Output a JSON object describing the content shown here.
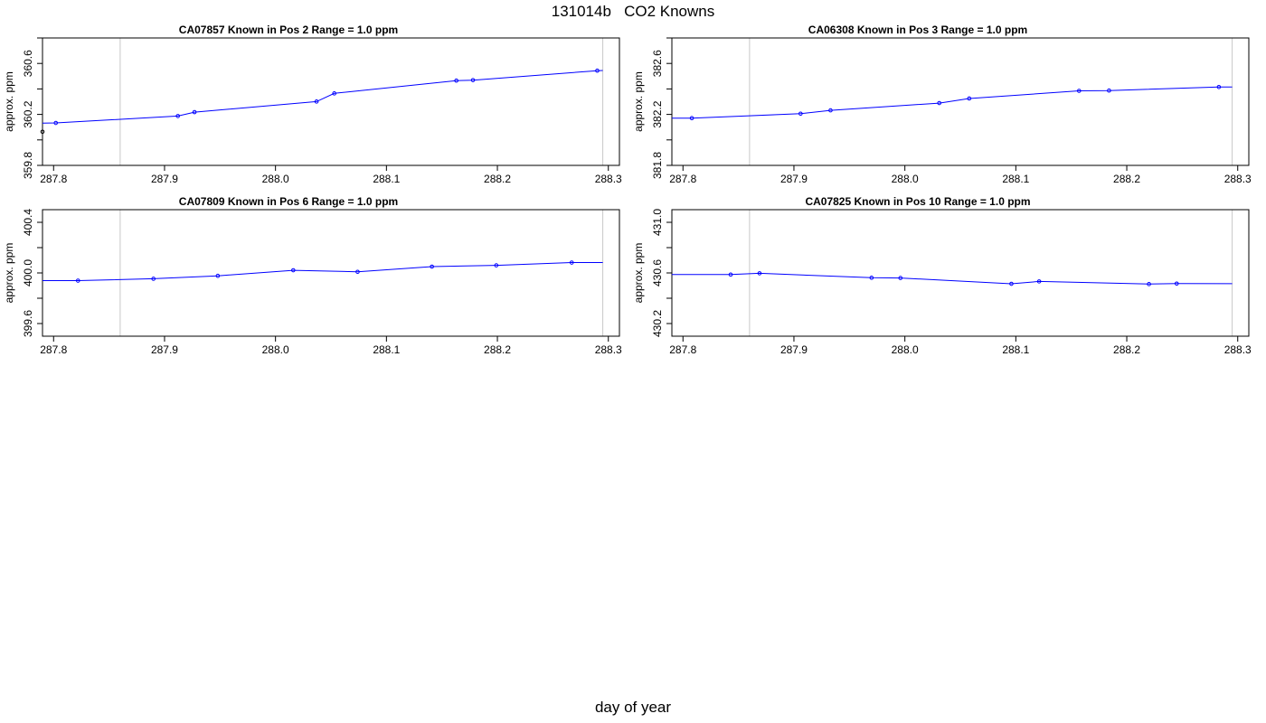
{
  "figure": {
    "title": "131014b   CO2 Knowns",
    "xlabel": "day of year"
  },
  "chart_data": [
    {
      "type": "line",
      "title": "CA07857    Known in Pos 2          Range = 1.0 ppm",
      "xlabel": "day of year",
      "ylabel": "approx. ppm",
      "xlim": [
        287.79,
        288.31
      ],
      "ylim": [
        359.8,
        360.8
      ],
      "x_ticks": [
        "287.8",
        "287.9",
        "288.0",
        "288.1",
        "288.2",
        "288.3"
      ],
      "x_tick_values": [
        287.8,
        287.9,
        288.0,
        288.1,
        288.2,
        288.3
      ],
      "y_ticks": [
        "359.8",
        "360.2",
        "360.6"
      ],
      "y_tick_values": [
        359.8,
        360.2,
        360.6
      ],
      "y_minor_ticks": [
        360.0,
        360.4,
        360.8
      ],
      "vlines": [
        287.86,
        288.295
      ],
      "series": [
        {
          "name": "fit",
          "color": "#0000ff",
          "style": "line",
          "x": [
            287.79,
            287.802,
            287.912,
            287.927,
            288.037,
            288.053,
            288.163,
            288.178,
            288.29,
            288.295
          ],
          "y": [
            360.131,
            360.133,
            360.187,
            360.218,
            360.301,
            360.365,
            360.465,
            360.469,
            360.543,
            360.545
          ]
        },
        {
          "name": "points",
          "color": "#0000ff",
          "style": "points",
          "x": [
            287.802,
            287.912,
            287.927,
            288.037,
            288.053,
            288.163,
            288.178,
            288.29
          ],
          "y": [
            360.133,
            360.187,
            360.218,
            360.301,
            360.365,
            360.465,
            360.469,
            360.543
          ]
        },
        {
          "name": "flagged",
          "color": "#000000",
          "style": "points",
          "x": [
            287.79
          ],
          "y": [
            360.064
          ]
        }
      ]
    },
    {
      "type": "line",
      "title": "CA06308    Known in Pos 3          Range = 1.0 ppm",
      "xlabel": "day of year",
      "ylabel": "approx. ppm",
      "xlim": [
        287.79,
        288.31
      ],
      "ylim": [
        381.8,
        382.8
      ],
      "x_ticks": [
        "287.8",
        "287.9",
        "288.0",
        "288.1",
        "288.2",
        "288.3"
      ],
      "x_tick_values": [
        287.8,
        287.9,
        288.0,
        288.1,
        288.2,
        288.3
      ],
      "y_ticks": [
        "381.8",
        "382.2",
        "382.6"
      ],
      "y_tick_values": [
        381.8,
        382.2,
        382.6
      ],
      "y_minor_ticks": [
        382.0,
        382.4,
        382.8
      ],
      "vlines": [
        287.86,
        288.295
      ],
      "series": [
        {
          "name": "fit",
          "color": "#0000ff",
          "style": "line",
          "x": [
            287.79,
            287.808,
            287.906,
            287.933,
            288.031,
            288.058,
            288.157,
            288.184,
            288.283,
            288.295
          ],
          "y": [
            382.17,
            382.171,
            382.206,
            382.232,
            382.289,
            382.325,
            382.385,
            382.387,
            382.415,
            382.415
          ]
        },
        {
          "name": "points",
          "color": "#0000ff",
          "style": "points",
          "x": [
            287.808,
            287.906,
            287.933,
            288.031,
            288.058,
            288.157,
            288.184,
            288.283
          ],
          "y": [
            382.171,
            382.206,
            382.232,
            382.289,
            382.325,
            382.385,
            382.387,
            382.415
          ]
        }
      ]
    },
    {
      "type": "line",
      "title": "CA07809    Known in Pos 6          Range = 1.0 ppm",
      "xlabel": "day of year",
      "ylabel": "approx. ppm",
      "xlim": [
        287.79,
        288.31
      ],
      "ylim": [
        399.5,
        400.5
      ],
      "x_ticks": [
        "287.8",
        "287.9",
        "288.0",
        "288.1",
        "288.2",
        "288.3"
      ],
      "x_tick_values": [
        287.8,
        287.9,
        288.0,
        288.1,
        288.2,
        288.3
      ],
      "y_ticks": [
        "399.6",
        "400.0",
        "400.4"
      ],
      "y_tick_values": [
        399.6,
        400.0,
        400.4
      ],
      "y_minor_ticks": [
        399.8,
        400.2
      ],
      "vlines": [
        287.86,
        288.295
      ],
      "series": [
        {
          "name": "fit",
          "color": "#0000ff",
          "style": "line",
          "x": [
            287.79,
            287.822,
            287.89,
            287.948,
            288.016,
            288.074,
            288.141,
            288.199,
            288.267,
            288.295
          ],
          "y": [
            399.939,
            399.939,
            399.954,
            399.977,
            400.021,
            400.009,
            400.05,
            400.06,
            400.082,
            400.082
          ]
        },
        {
          "name": "points",
          "color": "#0000ff",
          "style": "points",
          "x": [
            287.822,
            287.89,
            287.948,
            288.016,
            288.074,
            288.141,
            288.199,
            288.267
          ],
          "y": [
            399.939,
            399.954,
            399.977,
            400.021,
            400.009,
            400.05,
            400.06,
            400.082
          ]
        }
      ]
    },
    {
      "type": "line",
      "title": "CA07825    Known in Pos 10          Range = 1.0 ppm",
      "xlabel": "day of year",
      "ylabel": "approx. ppm",
      "xlim": [
        287.79,
        288.31
      ],
      "ylim": [
        430.1,
        431.1
      ],
      "x_ticks": [
        "287.8",
        "287.9",
        "288.0",
        "288.1",
        "288.2",
        "288.3"
      ],
      "x_tick_values": [
        287.8,
        287.9,
        288.0,
        288.1,
        288.2,
        288.3
      ],
      "y_ticks": [
        "430.2",
        "430.6",
        "431.0"
      ],
      "y_tick_values": [
        430.2,
        430.6,
        431.0
      ],
      "y_minor_ticks": [
        430.4,
        430.8
      ],
      "vlines": [
        287.86,
        288.295
      ],
      "series": [
        {
          "name": "fit",
          "color": "#0000ff",
          "style": "line",
          "x": [
            287.79,
            287.843,
            287.869,
            287.97,
            287.996,
            288.096,
            288.121,
            288.22,
            288.245,
            288.295
          ],
          "y": [
            430.587,
            430.587,
            430.597,
            430.562,
            430.56,
            430.514,
            430.533,
            430.512,
            430.516,
            430.515
          ]
        },
        {
          "name": "points",
          "color": "#0000ff",
          "style": "points",
          "x": [
            287.843,
            287.869,
            287.97,
            287.996,
            288.096,
            288.121,
            288.22,
            288.245
          ],
          "y": [
            430.587,
            430.597,
            430.562,
            430.56,
            430.514,
            430.533,
            430.512,
            430.516
          ]
        }
      ]
    }
  ]
}
